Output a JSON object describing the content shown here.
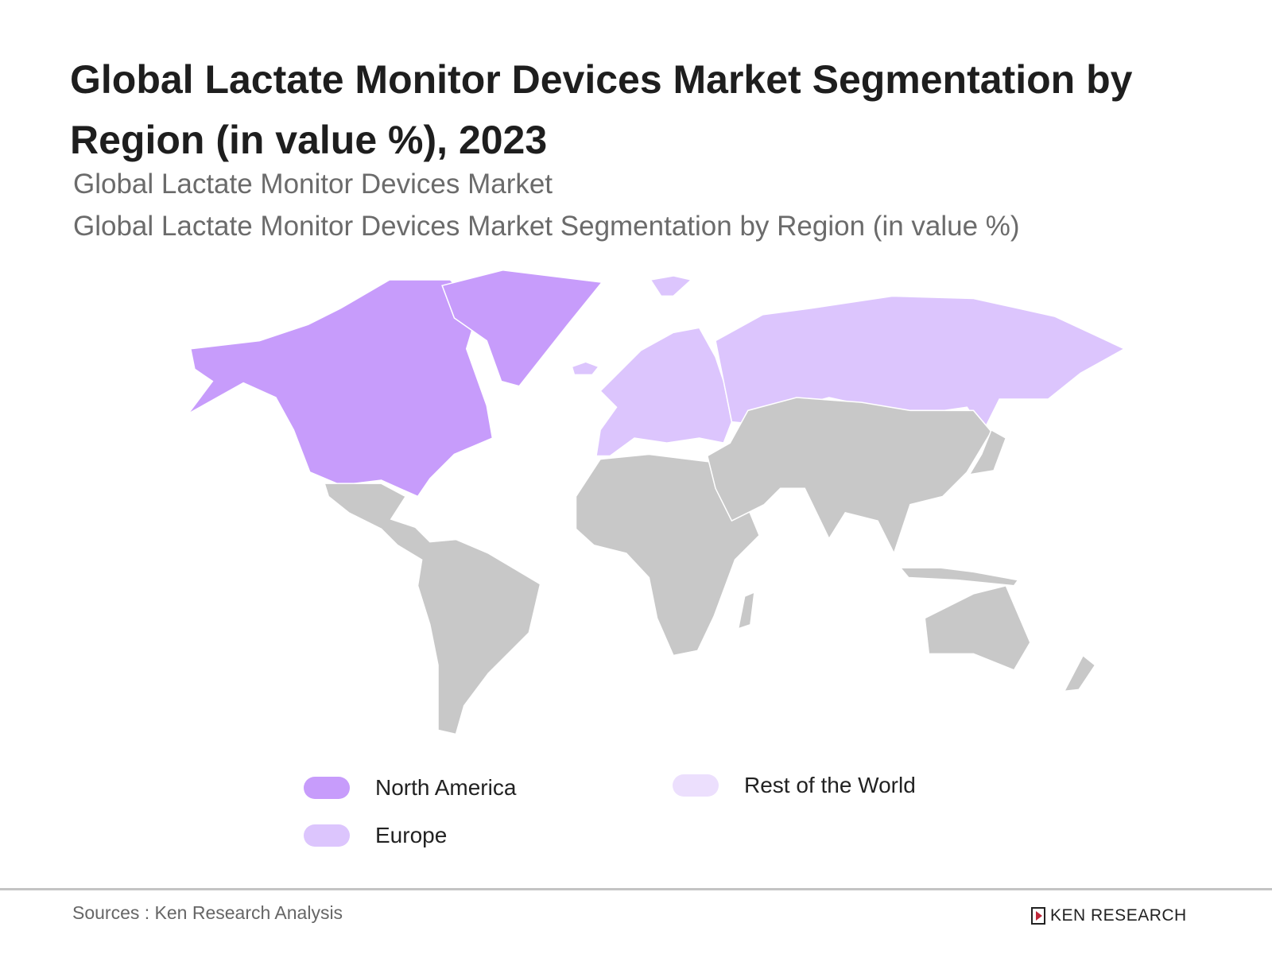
{
  "title": "Global Lactate Monitor Devices Market Segmentation by Region (in value %), 2023",
  "subtitle_1": "Global Lactate Monitor Devices Market",
  "subtitle_2": "Global Lactate Monitor Devices Market Segmentation by Region (in value %)",
  "legend": [
    {
      "label": "North America",
      "color": "#c79cfb"
    },
    {
      "label": "Europe",
      "color": "#dcc5fd"
    },
    {
      "label": "Rest of the World",
      "color": "#ecdffd"
    }
  ],
  "map_colors": {
    "north_america": "#c79cfb",
    "europe": "#dcc5fd",
    "other": "#c8c8c8"
  },
  "source": "Sources : Ken Research Analysis",
  "logo_text": "KEN RESEARCH"
}
